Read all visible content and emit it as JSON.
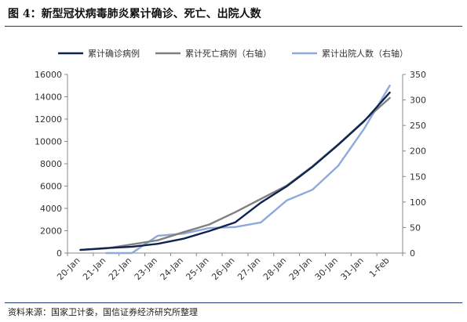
{
  "figure": {
    "title": "图 4：新型冠状病毒肺炎累计确诊、死亡、出院人数",
    "source": "资料来源：国家卫计委，国信证券经济研究所整理"
  },
  "chart_data": {
    "type": "line",
    "categories": [
      "20-Jan",
      "21-Jan",
      "22-Jan",
      "23-Jan",
      "24-Jan",
      "25-Jan",
      "26-Jan",
      "27-Jan",
      "28-Jan",
      "29-Jan",
      "30-Jan",
      "31-Jan",
      "1-Feb"
    ],
    "y_left": {
      "ylim": [
        0,
        16000
      ],
      "ticks": [
        "0",
        "2000",
        "4000",
        "6000",
        "8000",
        "10000",
        "12000",
        "14000",
        "16000"
      ]
    },
    "y_right": {
      "ylim": [
        0,
        350
      ],
      "ticks": [
        "0",
        "50",
        "100",
        "150",
        "200",
        "250",
        "300",
        "350"
      ]
    },
    "grid": false,
    "legend": "top",
    "series": [
      {
        "name": "累计确诊病例",
        "axis": "left",
        "color": "#0f2350",
        "values": [
          291,
          440,
          571,
          830,
          1287,
          1975,
          2744,
          4515,
          5974,
          7711,
          9692,
          11791,
          14380
        ]
      },
      {
        "name": "累计死亡病例（右轴）",
        "axis": "right",
        "color": "#808080",
        "values": [
          6,
          9,
          17,
          25,
          41,
          56,
          80,
          106,
          132,
          170,
          213,
          259,
          304
        ]
      },
      {
        "name": "累计出院人数（右轴）",
        "axis": "right",
        "color": "#8ea9db",
        "values": [
          null,
          0,
          0,
          34,
          38,
          49,
          51,
          60,
          103,
          124,
          171,
          243,
          328
        ]
      }
    ]
  }
}
